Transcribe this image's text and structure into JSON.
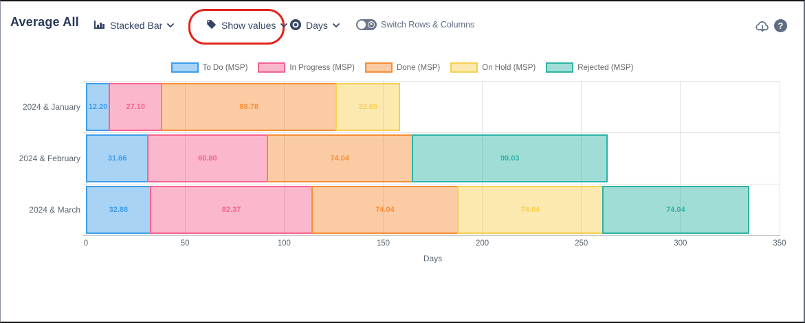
{
  "header": {
    "title": "Average All"
  },
  "toolbar": {
    "chart_type_label": "Stacked Bar",
    "show_values_label": "Show values",
    "unit_label": "Days",
    "switch_label": "Switch Rows & Columns"
  },
  "icons": {
    "help_glyph": "?",
    "toggle_x_glyph": "✕"
  },
  "annotation": {
    "shape": "oval",
    "color": "#e3231c",
    "target": "show-values-dropdown"
  },
  "chart_data": {
    "type": "bar",
    "orientation": "horizontal",
    "stacked": true,
    "categories": [
      "2024 & January",
      "2024 & February",
      "2024 & March"
    ],
    "series": [
      {
        "name": "To Do (MSP)",
        "color": "#3d9de9",
        "values": [
          12.2,
          31.66,
          32.88
        ]
      },
      {
        "name": "In Progress (MSP)",
        "color": "#f7628f",
        "values": [
          27.1,
          60.8,
          82.37
        ]
      },
      {
        "name": "Done (MSP)",
        "color": "#f78d35",
        "values": [
          88.78,
          74.04,
          74.04
        ]
      },
      {
        "name": "On Hold (MSP)",
        "color": "#f7cf50",
        "values": [
          32.65,
          null,
          74.04
        ]
      },
      {
        "name": "Rejected (MSP)",
        "color": "#2eb3a6",
        "values": [
          null,
          99.03,
          74.04
        ]
      }
    ],
    "fill_opacity": 0.45,
    "xlabel": "Days",
    "xlim": [
      0,
      350
    ],
    "xticks": [
      0,
      50,
      100,
      150,
      200,
      250,
      300,
      350
    ],
    "legend_position": "top",
    "value_label_decimals": 2,
    "grid": true
  }
}
